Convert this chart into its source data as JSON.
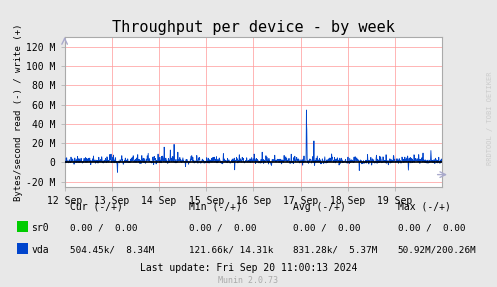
{
  "title": "Throughput per device - by week",
  "ylabel": "Bytes/second read (-) / write (+)",
  "background_color": "#e8e8e8",
  "plot_bg_color": "#ffffff",
  "grid_color": "#ff9999",
  "line_color": "#0044cc",
  "zero_line_color": "#000000",
  "border_color": "#aaaaaa",
  "ylim": [
    -25000000,
    130000000
  ],
  "yticks": [
    -20000000,
    0,
    20000000,
    40000000,
    60000000,
    80000000,
    100000000,
    120000000
  ],
  "ytick_labels": [
    "-20 M",
    "0",
    "20 M",
    "40 M",
    "60 M",
    "80 M",
    "100 M",
    "120 M"
  ],
  "x_labels": [
    "12 Sep",
    "13 Sep",
    "14 Sep",
    "15 Sep",
    "16 Sep",
    "17 Sep",
    "18 Sep",
    "19 Sep"
  ],
  "title_fontsize": 11,
  "tick_fontsize": 7,
  "legend_fontsize": 7,
  "rrdtool_text": "RRDTOOL / TOBI OETIKER",
  "munin_text": "Munin 2.0.73",
  "footer_text": "Last update: Fri Sep 20 11:00:13 2024",
  "legend_entries": [
    {
      "label": "sr0",
      "color": "#00cc00"
    },
    {
      "label": "vda",
      "color": "#0044cc"
    }
  ],
  "legend_stats": [
    {
      "cur": "0.00 /  0.00",
      "min": "0.00 /  0.00",
      "avg": "0.00 /  0.00",
      "max": "0.00 /  0.00"
    },
    {
      "cur": "504.45k/  8.34M",
      "min": "121.66k/ 14.31k",
      "avg": "831.28k/  5.37M",
      "max": "50.92M/200.26M"
    }
  ]
}
